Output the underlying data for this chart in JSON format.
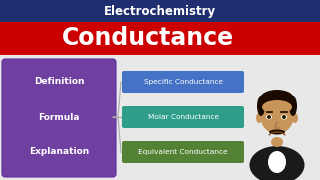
{
  "title_top": "Electrochemistry",
  "title_main": "Conductance",
  "left_box_color": "#7040A0",
  "left_box_text": [
    "Definition",
    "Formula",
    "Explanation"
  ],
  "right_boxes": [
    {
      "text": "Specific Conductance",
      "color": "#4472C4"
    },
    {
      "text": "Molar Conductance",
      "color": "#2E9E8A"
    },
    {
      "text": "Equivalent Conductance",
      "color": "#548235"
    }
  ],
  "header_bg": "#1F2E6E",
  "red_banner_color": "#CC0000",
  "content_bg": "#E8E8E8",
  "title_top_color": "#FFFFFF",
  "title_main_color": "#FFFFFF",
  "left_text_color": "#FFFFFF",
  "right_text_color": "#FFFFFF",
  "connector_color": "#AAAAAA",
  "person_skin": "#C8955A",
  "person_hair": "#1A0A00",
  "person_jacket": "#1A1A1A",
  "person_shirt": "#FFFFFF"
}
